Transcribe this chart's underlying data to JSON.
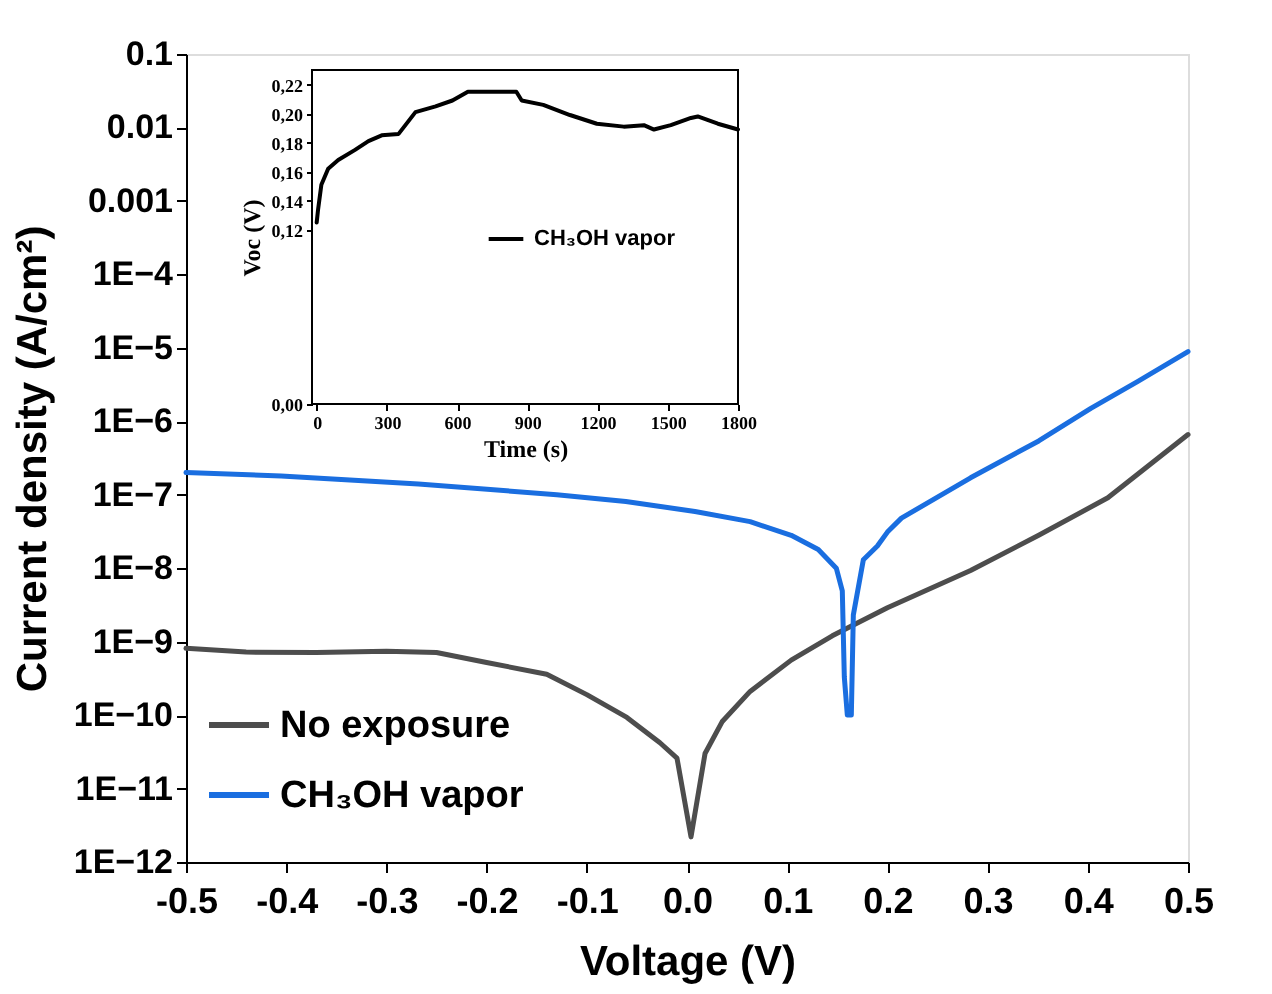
{
  "chart_data": [
    {
      "type": "line",
      "xlabel": "Voltage (V)",
      "ylabel": "Current density (A/cm²)",
      "log": "y",
      "grid": false,
      "legend": "bottom left",
      "xlim": [
        -0.5,
        0.5
      ],
      "xticks": [
        -0.5,
        -0.4,
        -0.3,
        -0.2,
        -0.1,
        {
          "value": 0,
          "label": "0.0"
        },
        0.1,
        0.2,
        0.3,
        0.4,
        0.5
      ],
      "ylim": [
        1e-12,
        0.1
      ],
      "yticks": [
        {
          "value": 1e-12,
          "label": "1E−12"
        },
        {
          "value": 1e-11,
          "label": "1E−11"
        },
        {
          "value": 1e-10,
          "label": "1E−10"
        },
        {
          "value": 1e-09,
          "label": "1E−9"
        },
        {
          "value": 1e-08,
          "label": "1E−8"
        },
        {
          "value": 1e-07,
          "label": "1E−7"
        },
        {
          "value": 1e-06,
          "label": "1E−6"
        },
        {
          "value": 1e-05,
          "label": "1E−5"
        },
        {
          "value": 0.0001,
          "label": "1E−4"
        },
        0.001,
        0.01,
        0.1
      ],
      "series": [
        {
          "name": "No exposure",
          "color": "#4d4d4d",
          "x": [
            -0.5,
            -0.44,
            -0.37,
            -0.3,
            -0.25,
            -0.2,
            -0.14,
            -0.1,
            -0.06,
            -0.027,
            -0.01,
            0.004,
            0.018,
            0.035,
            0.063,
            0.104,
            0.145,
            0.2,
            0.283,
            0.351,
            0.42,
            0.5
          ],
          "values": [
            8.1e-10,
            7.2e-10,
            7.1e-10,
            7.4e-10,
            7.1e-10,
            5.2e-10,
            3.6e-10,
            1.9e-10,
            9.3e-11,
            4.2e-11,
            2.6e-11,
            2.2e-12,
            3e-11,
            8.1e-11,
            2.1e-10,
            5.6e-10,
            1.2e-09,
            2.9e-09,
            9.3e-09,
            2.8e-08,
            9.1e-08,
            6.6e-07
          ]
        },
        {
          "name": "CH₃OH vapor",
          "color": "#1a6ee0",
          "x": [
            -0.5,
            -0.405,
            -0.268,
            -0.13,
            -0.061,
            0.008,
            0.063,
            0.104,
            0.131,
            0.149,
            0.155,
            0.157,
            0.16,
            0.164,
            0.166,
            0.176,
            0.19,
            0.2,
            0.214,
            0.283,
            0.351,
            0.403,
            0.45,
            0.5
          ],
          "values": [
            2e-07,
            1.8e-07,
            1.4e-07,
            1e-07,
            8.1e-08,
            5.9e-08,
            4.3e-08,
            2.8e-08,
            1.8e-08,
            1e-08,
            4.9e-09,
            3.3e-10,
            1e-10,
            1e-10,
            2.3e-09,
            1.3e-08,
            2e-08,
            3.1e-08,
            4.8e-08,
            1.7e-07,
            5.4e-07,
            1.5e-06,
            3.5e-06,
            8.9e-06
          ]
        }
      ]
    },
    {
      "type": "line",
      "xlabel": "Time (s)",
      "ylabel": "Voc (V)",
      "grid": false,
      "legend": "right",
      "xlim": [
        -20,
        1800
      ],
      "xticks": [
        0,
        300,
        600,
        900,
        1200,
        1500,
        1800
      ],
      "ylim": [
        0,
        0.23
      ],
      "yticks": [
        {
          "value": 0,
          "label": "0,00"
        },
        {
          "value": 0.12,
          "label": "0,12"
        },
        {
          "value": 0.14,
          "label": "0,14"
        },
        {
          "value": 0.16,
          "label": "0,16"
        },
        {
          "value": 0.18,
          "label": "0,18"
        },
        {
          "value": 0.2,
          "label": "0,20"
        },
        {
          "value": 0.22,
          "label": "0,22"
        }
      ],
      "series": [
        {
          "name": "CH₃OH vapor",
          "color": "#000000",
          "x": [
            0,
            6,
            20,
            49,
            92,
            164,
            221,
            278,
            350,
            422,
            508,
            580,
            646,
            738,
            853,
            876,
            968,
            1082,
            1197,
            1312,
            1398,
            1441,
            1513,
            1599,
            1628,
            1714,
            1800
          ],
          "values": [
            0.125,
            0.134,
            0.151,
            0.162,
            0.168,
            0.175,
            0.181,
            0.185,
            0.186,
            0.201,
            0.205,
            0.209,
            0.215,
            0.215,
            0.215,
            0.209,
            0.206,
            0.199,
            0.193,
            0.191,
            0.192,
            0.189,
            0.192,
            0.197,
            0.198,
            0.193,
            0.189
          ]
        }
      ]
    }
  ]
}
